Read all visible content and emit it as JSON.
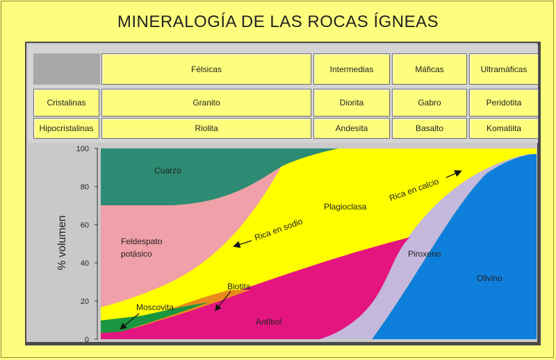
{
  "title": "MINERALOGÍA DE LAS ROCAS ÍGNEAS",
  "table": {
    "columns": [
      "Félsicas",
      "Intermedias",
      "Máficas",
      "Ultramáficas"
    ],
    "rows": [
      {
        "label": "Cristalinas",
        "values": [
          "Granito",
          "Diorita",
          "Gabro",
          "Peridotita"
        ]
      },
      {
        "label": "Hipocristalinas",
        "values": [
          "Riolita",
          "Andesita",
          "Basalto",
          "Komatiita"
        ]
      }
    ]
  },
  "chart_data": {
    "type": "area",
    "ylabel": "% volumen",
    "ylim": [
      0,
      100
    ],
    "yticks": [
      "0",
      "20",
      "40",
      "60",
      "80",
      "100"
    ],
    "series": [
      {
        "name": "Cuarzo",
        "color": "#2e8b73"
      },
      {
        "name": "Feldespato potásico",
        "color": "#f0a0a8"
      },
      {
        "name": "Plagioclasa",
        "color": "#ffff00"
      },
      {
        "name": "Moscovita",
        "color": "#1a9640"
      },
      {
        "name": "Biotita",
        "color": "#e98a1c"
      },
      {
        "name": "Anfíbol",
        "color": "#e4157f"
      },
      {
        "name": "Piroxeno",
        "color": "#c4b8dc"
      },
      {
        "name": "Olivino",
        "color": "#0f7fdc"
      }
    ],
    "annotations": {
      "sodium": "Rica en sodio",
      "calcium": "Rica en calcio"
    }
  },
  "labels": {
    "cuarzo": "Cuarzo",
    "feldespato_1": "Feldespato",
    "feldespato_2": "potásico",
    "plagioclasa": "Plagioclasa",
    "moscovita": "Moscovita",
    "biotita": "Biotita",
    "anfibol": "Anfíbol",
    "piroxeno": "Piroxeno",
    "olivino": "Olivino",
    "sodio": "Rica en sodio",
    "calcio": "Rica en calcio"
  }
}
